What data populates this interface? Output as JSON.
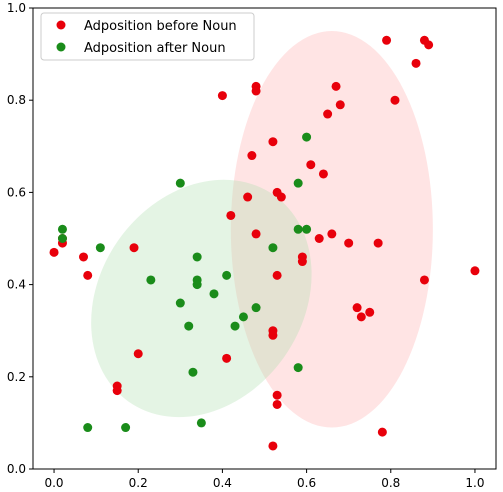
{
  "chart_data": {
    "type": "scatter",
    "title": "",
    "xlabel": "",
    "ylabel": "",
    "xlim": [
      -0.05,
      1.05
    ],
    "ylim": [
      0.0,
      1.0
    ],
    "xticks": [
      0.0,
      0.2,
      0.4,
      0.6,
      0.8,
      1.0
    ],
    "yticks": [
      0.0,
      0.2,
      0.4,
      0.6,
      0.8,
      1.0
    ],
    "xtick_labels": [
      "0.0",
      "0.2",
      "0.4",
      "0.6",
      "0.8",
      "1.0"
    ],
    "ytick_labels": [
      "0.0",
      "0.2",
      "0.4",
      "0.6",
      "0.8",
      "1.0"
    ],
    "grid": false,
    "legend_position": "top-left",
    "series": [
      {
        "name": "Adposition before Noun",
        "color": "#e8000b",
        "points": [
          [
            0.79,
            0.93
          ],
          [
            0.88,
            0.93
          ],
          [
            0.89,
            0.92
          ],
          [
            0.86,
            0.88
          ],
          [
            0.48,
            0.83
          ],
          [
            0.67,
            0.83
          ],
          [
            0.48,
            0.82
          ],
          [
            0.4,
            0.81
          ],
          [
            0.81,
            0.8
          ],
          [
            0.68,
            0.79
          ],
          [
            0.65,
            0.77
          ],
          [
            0.52,
            0.71
          ],
          [
            0.47,
            0.68
          ],
          [
            0.61,
            0.66
          ],
          [
            0.64,
            0.64
          ],
          [
            0.53,
            0.6
          ],
          [
            0.46,
            0.59
          ],
          [
            0.54,
            0.59
          ],
          [
            0.42,
            0.55
          ],
          [
            0.48,
            0.51
          ],
          [
            0.66,
            0.51
          ],
          [
            0.63,
            0.5
          ],
          [
            0.7,
            0.49
          ],
          [
            0.77,
            0.49
          ],
          [
            0.0,
            0.47
          ],
          [
            0.02,
            0.49
          ],
          [
            0.02,
            0.5
          ],
          [
            0.07,
            0.46
          ],
          [
            0.19,
            0.48
          ],
          [
            0.59,
            0.45
          ],
          [
            0.59,
            0.46
          ],
          [
            0.53,
            0.42
          ],
          [
            0.08,
            0.42
          ],
          [
            1.0,
            0.43
          ],
          [
            0.88,
            0.41
          ],
          [
            0.72,
            0.35
          ],
          [
            0.75,
            0.34
          ],
          [
            0.73,
            0.33
          ],
          [
            0.52,
            0.29
          ],
          [
            0.52,
            0.3
          ],
          [
            0.2,
            0.25
          ],
          [
            0.41,
            0.24
          ],
          [
            0.15,
            0.18
          ],
          [
            0.15,
            0.17
          ],
          [
            0.53,
            0.16
          ],
          [
            0.53,
            0.14
          ],
          [
            0.78,
            0.08
          ],
          [
            0.52,
            0.05
          ]
        ]
      },
      {
        "name": "Adposition after Noun",
        "color": "#1a8c1a",
        "points": [
          [
            0.6,
            0.72
          ],
          [
            0.3,
            0.62
          ],
          [
            0.58,
            0.62
          ],
          [
            0.6,
            0.52
          ],
          [
            0.58,
            0.52
          ],
          [
            0.02,
            0.52
          ],
          [
            0.02,
            0.5
          ],
          [
            0.11,
            0.48
          ],
          [
            0.52,
            0.48
          ],
          [
            0.34,
            0.46
          ],
          [
            0.41,
            0.42
          ],
          [
            0.23,
            0.41
          ],
          [
            0.34,
            0.41
          ],
          [
            0.34,
            0.4
          ],
          [
            0.38,
            0.38
          ],
          [
            0.3,
            0.36
          ],
          [
            0.48,
            0.35
          ],
          [
            0.45,
            0.33
          ],
          [
            0.32,
            0.31
          ],
          [
            0.43,
            0.31
          ],
          [
            0.33,
            0.21
          ],
          [
            0.58,
            0.22
          ],
          [
            0.08,
            0.09
          ],
          [
            0.17,
            0.09
          ],
          [
            0.35,
            0.1
          ]
        ]
      }
    ],
    "ellipses": [
      {
        "series": "Adposition before Noun",
        "color": "#ffb3b3",
        "opacity": 0.35,
        "center": [
          0.66,
          0.52
        ],
        "radius_x": 0.24,
        "radius_y": 0.43,
        "rotation_deg": 0
      },
      {
        "series": "Adposition after Noun",
        "color": "#b3e0b3",
        "opacity": 0.35,
        "center": [
          0.35,
          0.37
        ],
        "radius_x": 0.3,
        "radius_y": 0.22,
        "rotation_deg": 55
      }
    ]
  }
}
